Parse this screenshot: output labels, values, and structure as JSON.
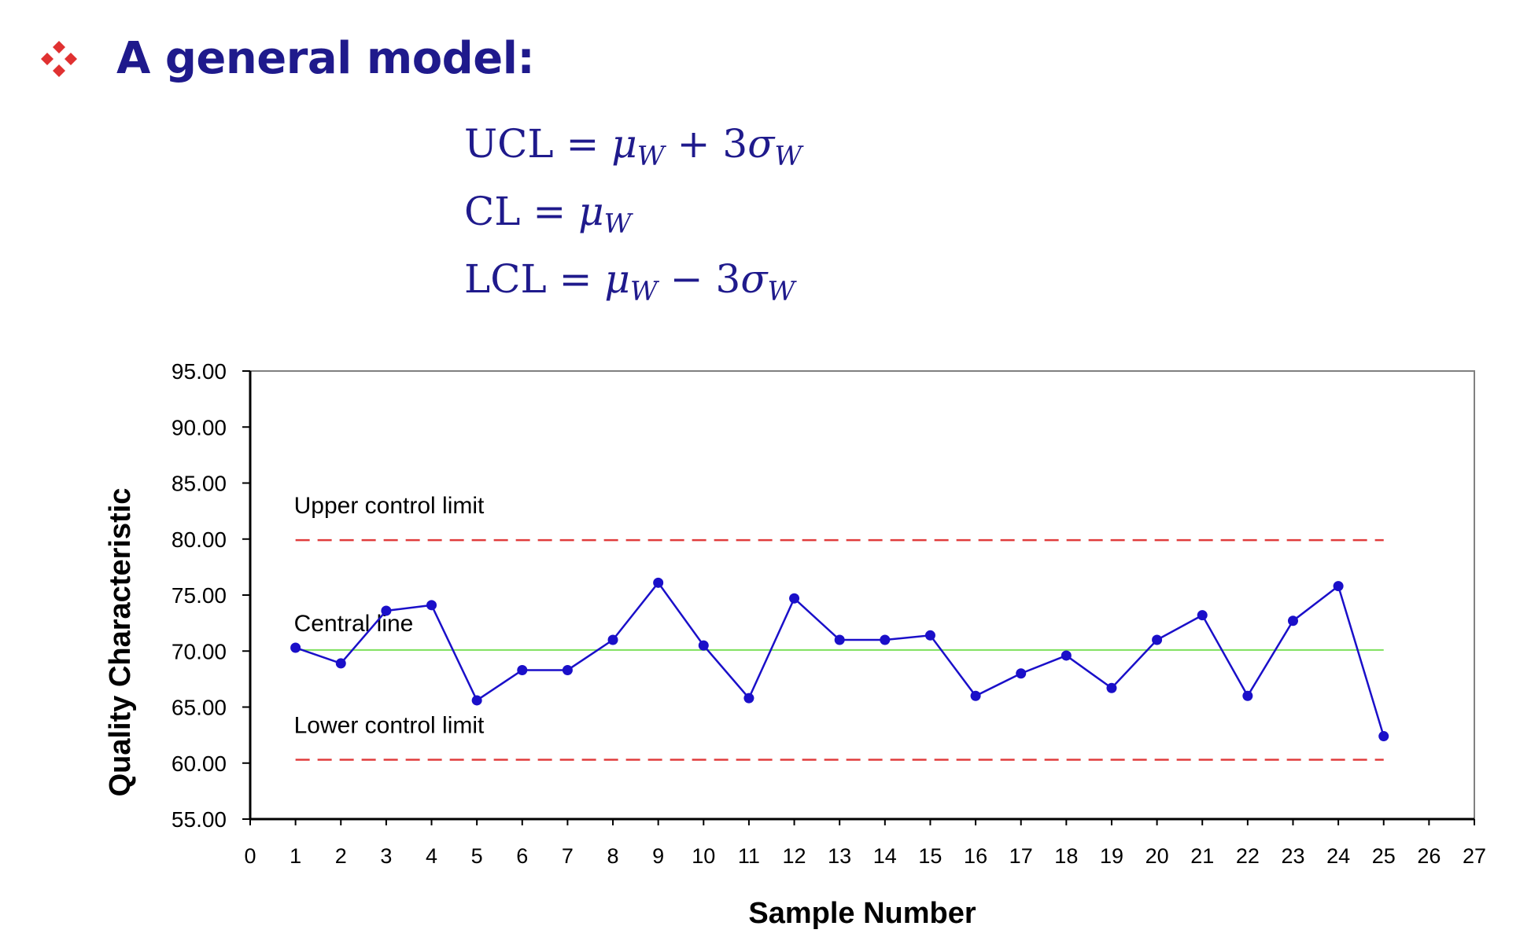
{
  "slide": {
    "heading": "A general model:",
    "bullet_icon": "four-diamond-bullet-icon",
    "bullet_color": "#e03131",
    "heading_color": "#1f1a8c",
    "formulas": [
      {
        "lhs": "UCL",
        "eq": " = ",
        "mu": "μ",
        "mu_sub": "W",
        "op": " + 3",
        "sigma": "σ",
        "sigma_sub": "W"
      },
      {
        "lhs": "CL",
        "eq": " = ",
        "mu": "μ",
        "mu_sub": "W",
        "op": "",
        "sigma": "",
        "sigma_sub": ""
      },
      {
        "lhs": "LCL",
        "eq": " = ",
        "mu": "μ",
        "mu_sub": "W",
        "op": " − 3",
        "sigma": "σ",
        "sigma_sub": "W"
      }
    ]
  },
  "chart_data": {
    "type": "line",
    "title": "",
    "xlabel": "Sample Number",
    "ylabel": "Quality Characteristic",
    "xlim": [
      0,
      27
    ],
    "ylim": [
      55,
      95
    ],
    "xticks": [
      0,
      1,
      2,
      3,
      4,
      5,
      6,
      7,
      8,
      9,
      10,
      11,
      12,
      13,
      14,
      15,
      16,
      17,
      18,
      19,
      20,
      21,
      22,
      23,
      24,
      25,
      26,
      27
    ],
    "yticks": [
      55,
      60,
      65,
      70,
      75,
      80,
      85,
      90,
      95
    ],
    "ytick_labels": [
      "55.00",
      "60.00",
      "65.00",
      "70.00",
      "75.00",
      "80.00",
      "85.00",
      "90.00",
      "95.00"
    ],
    "grid": false,
    "series": [
      {
        "x": [
          1,
          2,
          3,
          4,
          5,
          6,
          7,
          8,
          9,
          10,
          11,
          12,
          13,
          14,
          15,
          16,
          17,
          18,
          19,
          20,
          21,
          22,
          23,
          24,
          25
        ],
        "values": [
          70.3,
          68.9,
          73.6,
          74.1,
          65.6,
          68.3,
          68.3,
          71.0,
          76.1,
          70.5,
          65.8,
          74.7,
          71.0,
          71.0,
          71.4,
          66.0,
          68.0,
          69.6,
          66.7,
          71.0,
          73.2,
          66.0,
          72.7,
          75.8,
          62.4
        ],
        "color": "#1a0fc9"
      }
    ],
    "reference_lines": [
      {
        "label": "Upper control limit",
        "y": 79.9,
        "x_range": [
          1,
          25
        ],
        "style": "dashed",
        "color": "#e03c3c"
      },
      {
        "label": "Central line",
        "y": 70.1,
        "x_range": [
          1,
          25
        ],
        "style": "solid",
        "color": "#7ee05c"
      },
      {
        "label": "Lower control limit",
        "y": 60.3,
        "x_range": [
          1,
          25
        ],
        "style": "dashed",
        "color": "#e03c3c"
      }
    ]
  }
}
